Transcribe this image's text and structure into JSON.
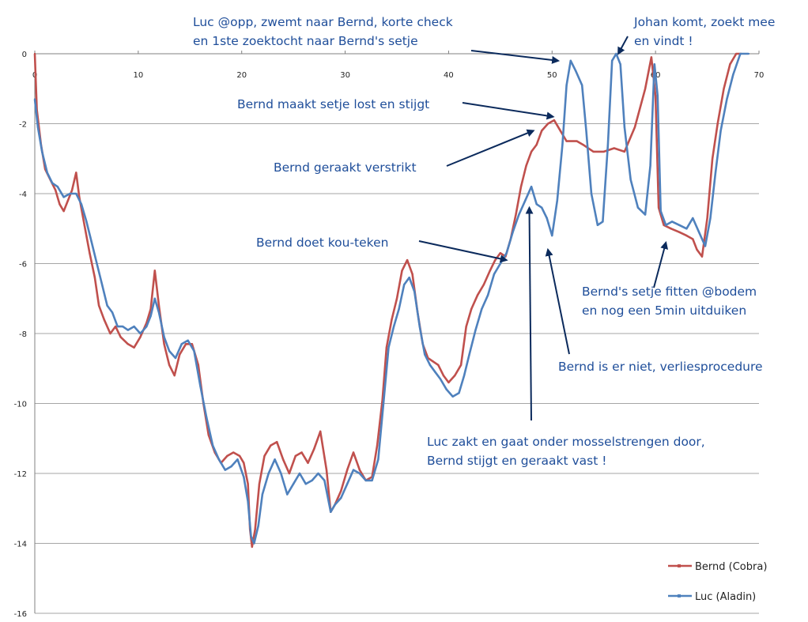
{
  "chart_data": {
    "type": "line",
    "title": "",
    "xlabel": "",
    "ylabel": "",
    "xlim": [
      0,
      70
    ],
    "ylim": [
      -16,
      0
    ],
    "x_ticks": [
      0,
      10,
      20,
      30,
      40,
      50,
      60,
      70
    ],
    "y_ticks": [
      0,
      -2,
      -4,
      -6,
      -8,
      -10,
      -12,
      -14,
      -16
    ],
    "grid": "horizontal",
    "legend_position": "bottom-right",
    "series": [
      {
        "name": "Bernd (Cobra)",
        "color": "#c0504d",
        "points": [
          [
            0,
            0
          ],
          [
            0.2,
            -1.6
          ],
          [
            0.6,
            -2.6
          ],
          [
            1,
            -3.3
          ],
          [
            1.5,
            -3.6
          ],
          [
            2,
            -3.9
          ],
          [
            2.4,
            -4.3
          ],
          [
            2.8,
            -4.5
          ],
          [
            3.2,
            -4.2
          ],
          [
            3.6,
            -3.9
          ],
          [
            4,
            -3.4
          ],
          [
            4.3,
            -4.1
          ],
          [
            4.8,
            -4.9
          ],
          [
            5.3,
            -5.7
          ],
          [
            5.8,
            -6.4
          ],
          [
            6.2,
            -7.2
          ],
          [
            6.7,
            -7.6
          ],
          [
            7.3,
            -8
          ],
          [
            7.8,
            -7.8
          ],
          [
            8.3,
            -8.1
          ],
          [
            9,
            -8.3
          ],
          [
            9.6,
            -8.4
          ],
          [
            10.2,
            -8.1
          ],
          [
            10.8,
            -7.7
          ],
          [
            11.2,
            -7.3
          ],
          [
            11.6,
            -6.2
          ],
          [
            12,
            -7.2
          ],
          [
            12.5,
            -8.3
          ],
          [
            13,
            -8.9
          ],
          [
            13.5,
            -9.2
          ],
          [
            14,
            -8.6
          ],
          [
            14.6,
            -8.3
          ],
          [
            15.2,
            -8.3
          ],
          [
            15.8,
            -8.9
          ],
          [
            16.3,
            -10
          ],
          [
            16.8,
            -10.9
          ],
          [
            17.4,
            -11.4
          ],
          [
            18,
            -11.7
          ],
          [
            18.6,
            -11.5
          ],
          [
            19.2,
            -11.4
          ],
          [
            19.8,
            -11.5
          ],
          [
            20.2,
            -11.7
          ],
          [
            20.6,
            -12.3
          ],
          [
            20.8,
            -13.6
          ],
          [
            21,
            -14.1
          ],
          [
            21.3,
            -13.6
          ],
          [
            21.7,
            -12.3
          ],
          [
            22.2,
            -11.5
          ],
          [
            22.8,
            -11.2
          ],
          [
            23.4,
            -11.1
          ],
          [
            24,
            -11.6
          ],
          [
            24.6,
            -12
          ],
          [
            25.2,
            -11.5
          ],
          [
            25.8,
            -11.4
          ],
          [
            26.4,
            -11.7
          ],
          [
            27,
            -11.3
          ],
          [
            27.6,
            -10.8
          ],
          [
            28.2,
            -11.9
          ],
          [
            28.6,
            -13.1
          ],
          [
            29,
            -12.9
          ],
          [
            29.6,
            -12.5
          ],
          [
            30.2,
            -11.9
          ],
          [
            30.8,
            -11.4
          ],
          [
            31.4,
            -11.9
          ],
          [
            32,
            -12.2
          ],
          [
            32.6,
            -12.1
          ],
          [
            33.1,
            -11.2
          ],
          [
            33.6,
            -9.9
          ],
          [
            34,
            -8.4
          ],
          [
            34.5,
            -7.6
          ],
          [
            35,
            -7
          ],
          [
            35.5,
            -6.2
          ],
          [
            36,
            -5.9
          ],
          [
            36.5,
            -6.3
          ],
          [
            37,
            -7.4
          ],
          [
            37.5,
            -8.3
          ],
          [
            38,
            -8.7
          ],
          [
            38.5,
            -8.8
          ],
          [
            39,
            -8.9
          ],
          [
            39.5,
            -9.2
          ],
          [
            40,
            -9.4
          ],
          [
            40.6,
            -9.2
          ],
          [
            41.2,
            -8.9
          ],
          [
            41.7,
            -7.8
          ],
          [
            42.2,
            -7.3
          ],
          [
            42.8,
            -6.9
          ],
          [
            43.4,
            -6.6
          ],
          [
            44,
            -6.2
          ],
          [
            44.5,
            -5.9
          ],
          [
            45,
            -5.7
          ],
          [
            45.5,
            -5.8
          ],
          [
            46,
            -5.3
          ],
          [
            46.5,
            -4.6
          ],
          [
            47,
            -3.8
          ],
          [
            47.5,
            -3.2
          ],
          [
            48,
            -2.8
          ],
          [
            48.5,
            -2.6
          ],
          [
            49,
            -2.2
          ],
          [
            49.6,
            -2.0
          ],
          [
            50.2,
            -1.9
          ],
          [
            50.8,
            -2.2
          ],
          [
            51.4,
            -2.5
          ],
          [
            52.4,
            -2.5
          ],
          [
            53,
            -2.6
          ],
          [
            54,
            -2.8
          ],
          [
            55,
            -2.8
          ],
          [
            56,
            -2.7
          ],
          [
            57,
            -2.8
          ],
          [
            58,
            -2.1
          ],
          [
            59,
            -1.0
          ],
          [
            59.6,
            -0.1
          ],
          [
            60,
            -1.2
          ],
          [
            60.3,
            -4.4
          ],
          [
            60.8,
            -4.9
          ],
          [
            61.5,
            -5.0
          ],
          [
            62.3,
            -5.1
          ],
          [
            63,
            -5.2
          ],
          [
            63.6,
            -5.3
          ],
          [
            64,
            -5.6
          ],
          [
            64.5,
            -5.8
          ],
          [
            65,
            -4.7
          ],
          [
            65.5,
            -3.0
          ],
          [
            66,
            -2.0
          ],
          [
            66.6,
            -1.0
          ],
          [
            67.2,
            -0.3
          ],
          [
            67.8,
            0
          ],
          [
            68.3,
            0
          ]
        ]
      },
      {
        "name": "Luc (Aladin)",
        "color": "#4f81bd",
        "points": [
          [
            0,
            -1.3
          ],
          [
            0.3,
            -2.1
          ],
          [
            0.7,
            -2.8
          ],
          [
            1.2,
            -3.4
          ],
          [
            1.7,
            -3.7
          ],
          [
            2.2,
            -3.8
          ],
          [
            2.8,
            -4.1
          ],
          [
            3.4,
            -4.0
          ],
          [
            4,
            -4.0
          ],
          [
            4.5,
            -4.3
          ],
          [
            5,
            -4.8
          ],
          [
            5.5,
            -5.4
          ],
          [
            6,
            -6.0
          ],
          [
            6.5,
            -6.6
          ],
          [
            7,
            -7.2
          ],
          [
            7.5,
            -7.4
          ],
          [
            8,
            -7.8
          ],
          [
            8.5,
            -7.8
          ],
          [
            9,
            -7.9
          ],
          [
            9.6,
            -7.8
          ],
          [
            10.2,
            -8.0
          ],
          [
            10.8,
            -7.8
          ],
          [
            11.2,
            -7.5
          ],
          [
            11.6,
            -7.0
          ],
          [
            12,
            -7.4
          ],
          [
            12.5,
            -8.1
          ],
          [
            13,
            -8.5
          ],
          [
            13.6,
            -8.7
          ],
          [
            14.2,
            -8.3
          ],
          [
            14.8,
            -8.2
          ],
          [
            15.4,
            -8.5
          ],
          [
            16,
            -9.5
          ],
          [
            16.6,
            -10.4
          ],
          [
            17.2,
            -11.2
          ],
          [
            17.8,
            -11.6
          ],
          [
            18.4,
            -11.9
          ],
          [
            19,
            -11.8
          ],
          [
            19.6,
            -11.6
          ],
          [
            20.2,
            -12.1
          ],
          [
            20.6,
            -12.8
          ],
          [
            20.9,
            -13.8
          ],
          [
            21.2,
            -14.0
          ],
          [
            21.6,
            -13.5
          ],
          [
            22,
            -12.6
          ],
          [
            22.6,
            -12.0
          ],
          [
            23.2,
            -11.6
          ],
          [
            23.8,
            -12.0
          ],
          [
            24.4,
            -12.6
          ],
          [
            25,
            -12.3
          ],
          [
            25.6,
            -12.0
          ],
          [
            26.2,
            -12.3
          ],
          [
            26.8,
            -12.2
          ],
          [
            27.4,
            -12.0
          ],
          [
            28,
            -12.2
          ],
          [
            28.6,
            -13.1
          ],
          [
            29,
            -12.9
          ],
          [
            29.6,
            -12.7
          ],
          [
            30.2,
            -12.3
          ],
          [
            30.8,
            -11.9
          ],
          [
            31.4,
            -12.0
          ],
          [
            32,
            -12.2
          ],
          [
            32.6,
            -12.2
          ],
          [
            33.2,
            -11.6
          ],
          [
            33.7,
            -10.0
          ],
          [
            34.2,
            -8.4
          ],
          [
            34.7,
            -7.8
          ],
          [
            35.2,
            -7.3
          ],
          [
            35.7,
            -6.6
          ],
          [
            36.2,
            -6.4
          ],
          [
            36.7,
            -6.8
          ],
          [
            37.2,
            -7.8
          ],
          [
            37.7,
            -8.6
          ],
          [
            38.2,
            -8.9
          ],
          [
            38.7,
            -9.1
          ],
          [
            39.2,
            -9.3
          ],
          [
            39.8,
            -9.6
          ],
          [
            40.4,
            -9.8
          ],
          [
            41,
            -9.7
          ],
          [
            41.5,
            -9.2
          ],
          [
            42,
            -8.6
          ],
          [
            42.6,
            -7.9
          ],
          [
            43.2,
            -7.3
          ],
          [
            43.8,
            -6.9
          ],
          [
            44.4,
            -6.3
          ],
          [
            45,
            -6.0
          ],
          [
            45.6,
            -5.7
          ],
          [
            46.2,
            -5.1
          ],
          [
            46.8,
            -4.6
          ],
          [
            47.4,
            -4.2
          ],
          [
            48,
            -3.8
          ],
          [
            48.5,
            -4.3
          ],
          [
            49,
            -4.4
          ],
          [
            49.5,
            -4.7
          ],
          [
            50,
            -5.2
          ],
          [
            50.5,
            -4.2
          ],
          [
            51,
            -2.6
          ],
          [
            51.4,
            -0.9
          ],
          [
            51.8,
            -0.2
          ],
          [
            52.3,
            -0.5
          ],
          [
            52.9,
            -0.9
          ],
          [
            53.3,
            -2.2
          ],
          [
            53.8,
            -4.0
          ],
          [
            54.4,
            -4.9
          ],
          [
            54.9,
            -4.8
          ],
          [
            55.4,
            -2.6
          ],
          [
            55.8,
            -0.2
          ],
          [
            56.2,
            0
          ],
          [
            56.6,
            -0.3
          ],
          [
            57,
            -2.1
          ],
          [
            57.6,
            -3.6
          ],
          [
            58.3,
            -4.4
          ],
          [
            59,
            -4.6
          ],
          [
            59.5,
            -3.2
          ],
          [
            59.9,
            -0.3
          ],
          [
            60.2,
            -1.2
          ],
          [
            60.5,
            -4.5
          ],
          [
            61,
            -4.9
          ],
          [
            61.6,
            -4.8
          ],
          [
            62.3,
            -4.9
          ],
          [
            63,
            -5.0
          ],
          [
            63.6,
            -4.7
          ],
          [
            64.2,
            -5.1
          ],
          [
            64.8,
            -5.5
          ],
          [
            65.3,
            -4.7
          ],
          [
            65.8,
            -3.4
          ],
          [
            66.3,
            -2.2
          ],
          [
            66.9,
            -1.3
          ],
          [
            67.5,
            -0.6
          ],
          [
            68.2,
            0
          ],
          [
            69,
            0
          ]
        ]
      }
    ],
    "annotations": [
      {
        "lines": [
          "Luc @opp, zwemt naar Bernd, korte check",
          "en 1ste zoektocht naar Bernd's setje"
        ],
        "target": [
          50.6,
          -0.2
        ]
      },
      {
        "lines": [
          "Johan komt, zoekt mee",
          "en vindt !"
        ],
        "target": [
          56.4,
          0
        ]
      },
      {
        "lines": [
          "Bernd maakt setje lost en stijgt"
        ],
        "target": [
          50.1,
          -1.8
        ]
      },
      {
        "lines": [
          "Bernd geraakt verstrikt"
        ],
        "target": [
          48.2,
          -2.2
        ]
      },
      {
        "lines": [
          "Bernd doet kou-teken"
        ],
        "target": [
          45.6,
          -5.9
        ]
      },
      {
        "lines": [
          "Bernd's setje fitten @bodem",
          "en nog een 5min uitduiken"
        ],
        "target": [
          61,
          -5.4
        ]
      },
      {
        "lines": [
          "Bernd is er niet, verliesprocedure"
        ],
        "target": [
          49.6,
          -5.6
        ]
      },
      {
        "lines": [
          "Luc zakt en gaat onder mosselstrengen door,",
          "Bernd stijgt en geraakt vast !"
        ],
        "target": [
          47.8,
          -4.4
        ]
      }
    ]
  }
}
